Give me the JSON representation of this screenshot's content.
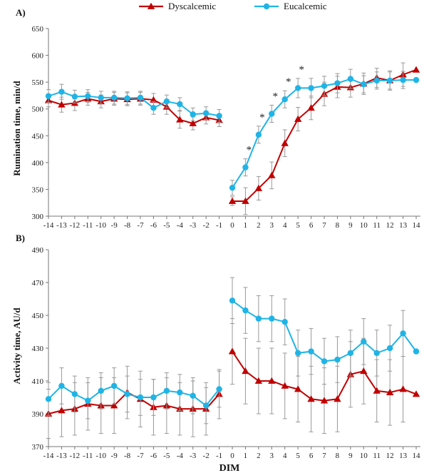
{
  "chart_data": {
    "type": "line",
    "legend": {
      "placement": "top-center",
      "entries": [
        {
          "label": "Dyscalcemic",
          "color": "#c00000",
          "marker": "triangle"
        },
        {
          "label": "Eucalcemic",
          "color": "#1fb4e6",
          "marker": "circle"
        }
      ]
    },
    "x_label": "DIM",
    "x_ticks": [
      -14,
      -13,
      -12,
      -11,
      -10,
      -9,
      -8,
      -7,
      -6,
      -5,
      -4,
      -3,
      -2,
      -1,
      0,
      1,
      2,
      3,
      4,
      5,
      6,
      7,
      8,
      9,
      10,
      11,
      12,
      13,
      14
    ],
    "panels": [
      {
        "label": "A)",
        "ylabel": "Rumination time, min/d",
        "ylim": [
          300,
          650
        ],
        "yticks": [
          300,
          350,
          400,
          450,
          500,
          550,
          600,
          650
        ],
        "significance_marker": "*",
        "significance_days": [
          1,
          2,
          3,
          4,
          5
        ],
        "series": [
          {
            "name": "Dyscalcemic",
            "color": "#c00000",
            "marker": "triangle",
            "segments": [
              {
                "x": [
                  -14,
                  -13,
                  -12,
                  -11,
                  -10,
                  -9,
                  -8,
                  -7,
                  -6,
                  -5,
                  -4,
                  -3,
                  -2,
                  -1
                ],
                "y": [
                  516,
                  508,
                  511,
                  519,
                  514,
                  519,
                  518,
                  519,
                  517,
                  504,
                  480,
                  473,
                  484,
                  479
                ],
                "err": [
                  12,
                  14,
                  14,
                  12,
                  12,
                  12,
                  12,
                  12,
                  12,
                  14,
                  16,
                  12,
                  12,
                  12
                ]
              },
              {
                "x": [
                  0,
                  1,
                  2,
                  3,
                  4,
                  5,
                  6,
                  7,
                  8,
                  9,
                  10,
                  11,
                  12,
                  13,
                  14
                ],
                "y": [
                  328,
                  328,
                  352,
                  376,
                  436,
                  481,
                  502,
                  528,
                  541,
                  540,
                  547,
                  558,
                  553,
                  564,
                  573
                ],
                "err": [
                  8,
                  25,
                  22,
                  25,
                  25,
                  22,
                  22,
                  22,
                  20,
                  18,
                  20,
                  18,
                  18,
                  22,
                  0
                ]
              }
            ]
          },
          {
            "name": "Eucalcemic",
            "color": "#1fb4e6",
            "marker": "circle",
            "segments": [
              {
                "x": [
                  -14,
                  -13,
                  -12,
                  -11,
                  -10,
                  -9,
                  -8,
                  -7,
                  -6,
                  -5,
                  -4,
                  -3,
                  -2,
                  -1
                ],
                "y": [
                  524,
                  532,
                  523,
                  524,
                  521,
                  521,
                  520,
                  521,
                  502,
                  514,
                  509,
                  490,
                  492,
                  487
                ],
                "err": [
                  12,
                  14,
                  12,
                  12,
                  12,
                  12,
                  12,
                  12,
                  12,
                  12,
                  12,
                  12,
                  12,
                  12
                ]
              },
              {
                "x": [
                  0,
                  1,
                  2,
                  3,
                  4,
                  5,
                  6,
                  7,
                  8,
                  9,
                  10,
                  11,
                  12,
                  13,
                  14
                ],
                "y": [
                  353,
                  391,
                  452,
                  491,
                  518,
                  539,
                  539,
                  543,
                  548,
                  556,
                  546,
                  553,
                  553,
                  554,
                  554
                ],
                "err": [
                  14,
                  16,
                  16,
                  16,
                  16,
                  18,
                  18,
                  18,
                  18,
                  18,
                  16,
                  16,
                  16,
                  16,
                  0
                ]
              }
            ]
          }
        ]
      },
      {
        "label": "B)",
        "ylabel": "Activity time, AU/d",
        "ylim": [
          370,
          490
        ],
        "yticks": [
          370,
          390,
          410,
          430,
          450,
          470,
          490
        ],
        "series": [
          {
            "name": "Dyscalcemic",
            "color": "#c00000",
            "marker": "triangle",
            "segments": [
              {
                "x": [
                  -14,
                  -13,
                  -12,
                  -11,
                  -10,
                  -9,
                  -8,
                  -7,
                  -6,
                  -5,
                  -4,
                  -3,
                  -2,
                  -1
                ],
                "y": [
                  390,
                  392,
                  393,
                  396,
                  395,
                  395,
                  403,
                  399,
                  394,
                  395,
                  393,
                  393,
                  393,
                  402
                ],
                "err": [
                  15,
                  16,
                  16,
                  16,
                  17,
                  17,
                  16,
                  17,
                  17,
                  17,
                  16,
                  17,
                  16,
                  15
                ]
              },
              {
                "x": [
                  0,
                  1,
                  2,
                  3,
                  4,
                  5,
                  6,
                  7,
                  8,
                  9,
                  10,
                  11,
                  12,
                  13,
                  14
                ],
                "y": [
                  428,
                  416,
                  410,
                  410,
                  407,
                  405,
                  399,
                  398,
                  399,
                  414,
                  416,
                  404,
                  403,
                  405,
                  402
                ],
                "err": [
                  20,
                  20,
                  20,
                  20,
                  20,
                  20,
                  20,
                  20,
                  20,
                  20,
                  20,
                  19,
                  20,
                  20,
                  0
                ]
              }
            ]
          },
          {
            "name": "Eucalcemic",
            "color": "#1fb4e6",
            "marker": "circle",
            "segments": [
              {
                "x": [
                  -14,
                  -13,
                  -12,
                  -11,
                  -10,
                  -9,
                  -8,
                  -7,
                  -6,
                  -5,
                  -4,
                  -3,
                  -2,
                  -1
                ],
                "y": [
                  399,
                  407,
                  402,
                  398,
                  404,
                  407,
                  402,
                  400,
                  400,
                  404,
                  403,
                  401,
                  395,
                  405
                ],
                "err": [
                  10,
                  11,
                  11,
                  11,
                  11,
                  11,
                  11,
                  11,
                  11,
                  11,
                  11,
                  11,
                  11,
                  11
                ]
              },
              {
                "x": [
                  0,
                  1,
                  2,
                  3,
                  4,
                  5,
                  6,
                  7,
                  8,
                  9,
                  10,
                  11,
                  12,
                  13,
                  14
                ],
                "y": [
                  459,
                  453,
                  448,
                  448,
                  446,
                  427,
                  428,
                  422,
                  423,
                  427,
                  434,
                  427,
                  430,
                  439,
                  428
                ],
                "err": [
                  14,
                  14,
                  14,
                  14,
                  14,
                  14,
                  14,
                  14,
                  14,
                  14,
                  14,
                  14,
                  14,
                  14,
                  0
                ]
              }
            ]
          }
        ]
      }
    ]
  }
}
